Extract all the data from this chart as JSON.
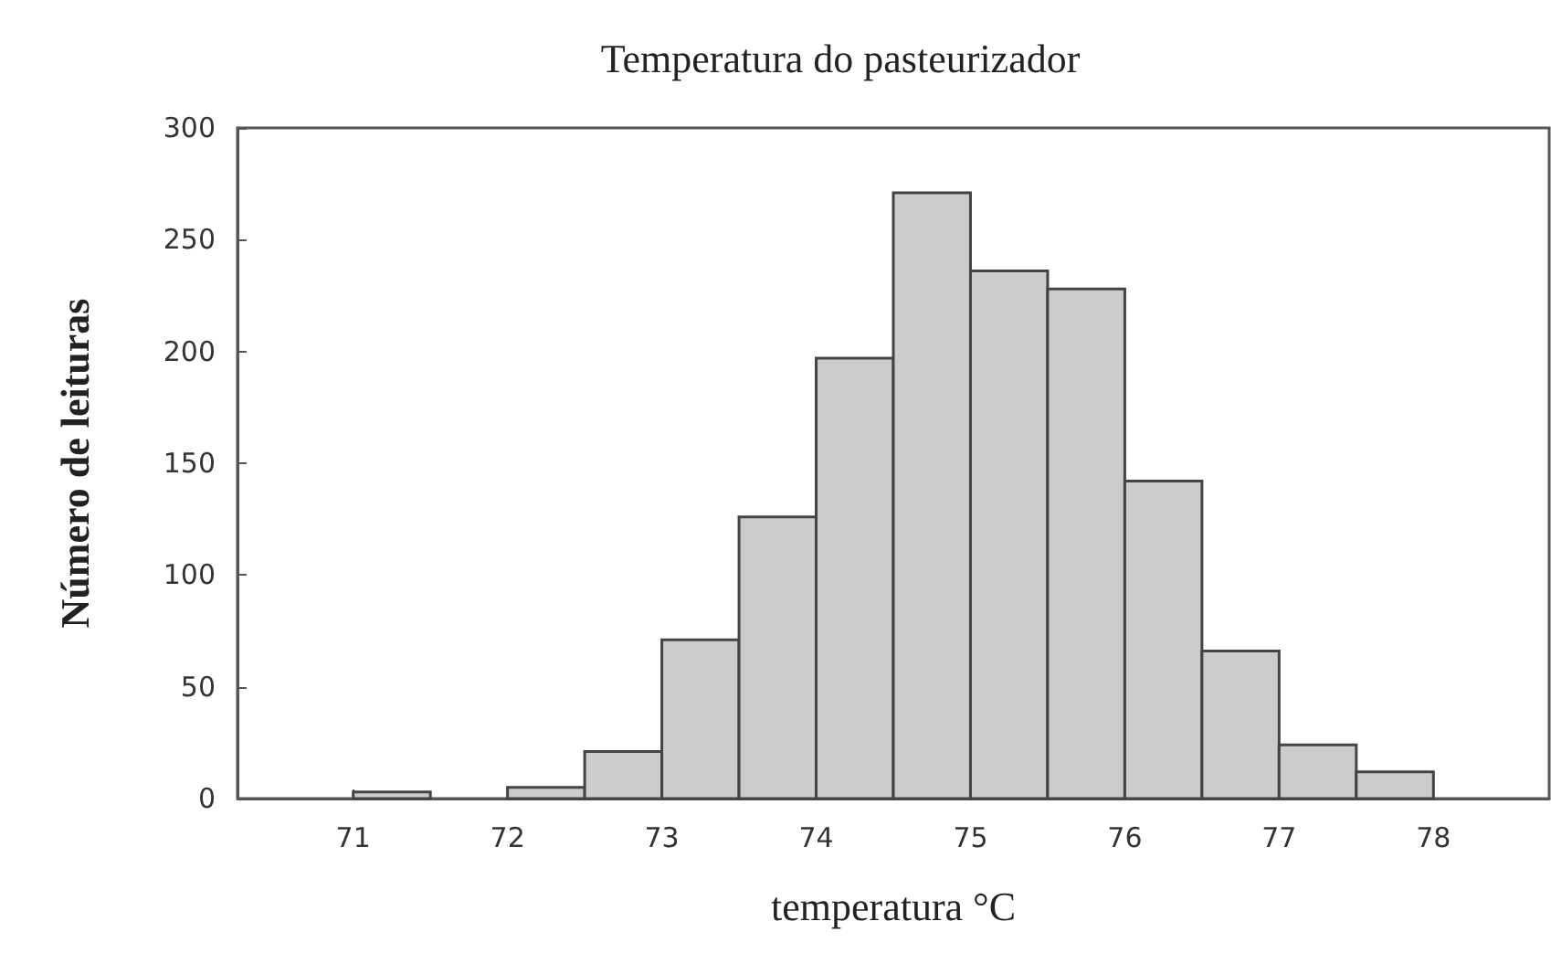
{
  "chart_data": {
    "type": "histogram",
    "title": "Temperatura do pasteurizador",
    "xlabel": "temperatura °C",
    "ylabel": "Número de leituras",
    "bins": [
      71,
      71.5,
      72,
      72.5,
      73,
      73.5,
      74,
      74.5,
      75,
      75.5,
      76,
      76.5,
      77,
      77.5,
      78
    ],
    "values": [
      3,
      0,
      5,
      21,
      71,
      126,
      197,
      271,
      236,
      228,
      142,
      66,
      24,
      12
    ],
    "color": "#cccccc",
    "xlim": [
      70.25,
      78.75
    ],
    "xticks": [
      71,
      72,
      73,
      74,
      75,
      76,
      77,
      78
    ],
    "ylim": [
      0,
      300
    ],
    "yticks": [
      0,
      50,
      100,
      150,
      200,
      250,
      300
    ],
    "grid": false
  }
}
